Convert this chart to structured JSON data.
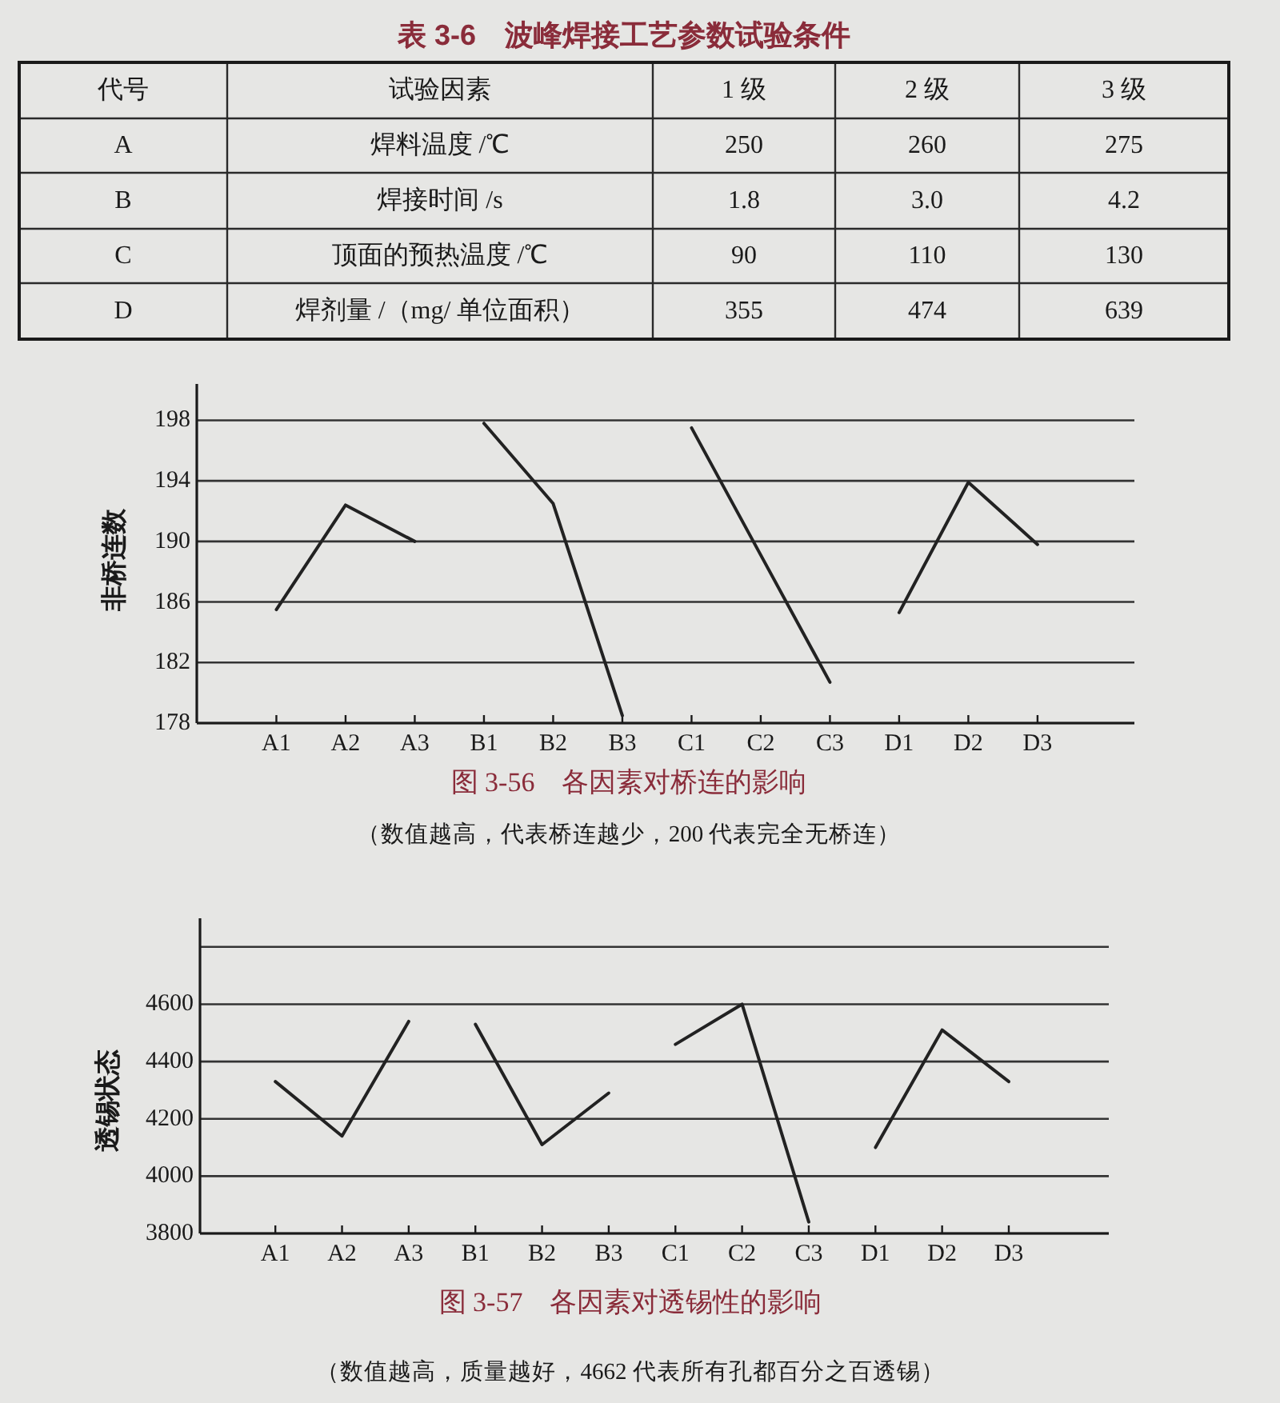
{
  "chart_data": [
    {
      "type": "other",
      "title": "表 3-6　波峰焊接工艺参数试验条件",
      "categories": [
        "代号",
        "试验因素",
        "1 级",
        "2 级",
        "3 级"
      ],
      "cell_labels": [
        [
          "A",
          "焊料温度 /℃",
          "250",
          "260",
          "275"
        ],
        [
          "B",
          "焊接时间 /s",
          "1.8",
          "3.0",
          "4.2"
        ],
        [
          "C",
          "顶面的预热温度 /℃",
          "90",
          "110",
          "130"
        ],
        [
          "D",
          "焊剂量 /（mg/ 单位面积）",
          "355",
          "474",
          "639"
        ]
      ]
    },
    {
      "type": "line",
      "title": "图 3-56　各因素对桥连的影响",
      "annotations": [
        "（数值越高，代表桥连越少，200 代表完全无桥连）"
      ],
      "ylabel": "非桥连数",
      "categories": [
        "A1",
        "A2",
        "A3",
        "B1",
        "B2",
        "B3",
        "C1",
        "C2",
        "C3",
        "D1",
        "D2",
        "D3"
      ],
      "series": [
        {
          "color": "#222222",
          "values": [
            185.5,
            192.4,
            190.0,
            null,
            null,
            null,
            null,
            null,
            null,
            null,
            null,
            null
          ]
        },
        {
          "color": "#222222",
          "values": [
            null,
            null,
            null,
            197.8,
            192.5,
            178.5,
            null,
            null,
            null,
            null,
            null,
            null
          ]
        },
        {
          "color": "#222222",
          "values": [
            null,
            null,
            null,
            null,
            null,
            null,
            197.5,
            189.1,
            180.7,
            null,
            null,
            null
          ]
        },
        {
          "color": "#222222",
          "values": [
            null,
            null,
            null,
            null,
            null,
            null,
            null,
            null,
            null,
            185.3,
            193.9,
            189.8
          ]
        }
      ],
      "ylim": [
        178,
        200.4
      ],
      "yticks": [
        178,
        182,
        186,
        190,
        194,
        198
      ],
      "grid": "y"
    },
    {
      "type": "line",
      "title": "图 3-57　各因素对透锡性的影响",
      "annotations": [
        "（数值越高，质量越好，4662 代表所有孔都百分之百透锡）"
      ],
      "ylabel": "透锡状态",
      "categories": [
        "A1",
        "A2",
        "A3",
        "B1",
        "B2",
        "B3",
        "C1",
        "C2",
        "C3",
        "D1",
        "D2",
        "D3"
      ],
      "series": [
        {
          "color": "#222222",
          "values": [
            4330,
            4140,
            4540,
            null,
            null,
            null,
            null,
            null,
            null,
            null,
            null,
            null
          ]
        },
        {
          "color": "#222222",
          "values": [
            null,
            null,
            null,
            4530,
            4110,
            4290,
            null,
            null,
            null,
            null,
            null,
            null
          ]
        },
        {
          "color": "#222222",
          "values": [
            null,
            null,
            null,
            null,
            null,
            null,
            4460,
            4600,
            3840,
            null,
            null,
            null
          ]
        },
        {
          "color": "#222222",
          "values": [
            null,
            null,
            null,
            null,
            null,
            null,
            null,
            null,
            null,
            4100,
            4510,
            4330
          ]
        }
      ],
      "ylim": [
        3800,
        4900
      ],
      "yticks": [
        3800,
        4000,
        4200,
        4400,
        4600,
        {
          "value": 4800,
          "label": null
        }
      ],
      "grid": "y"
    }
  ]
}
